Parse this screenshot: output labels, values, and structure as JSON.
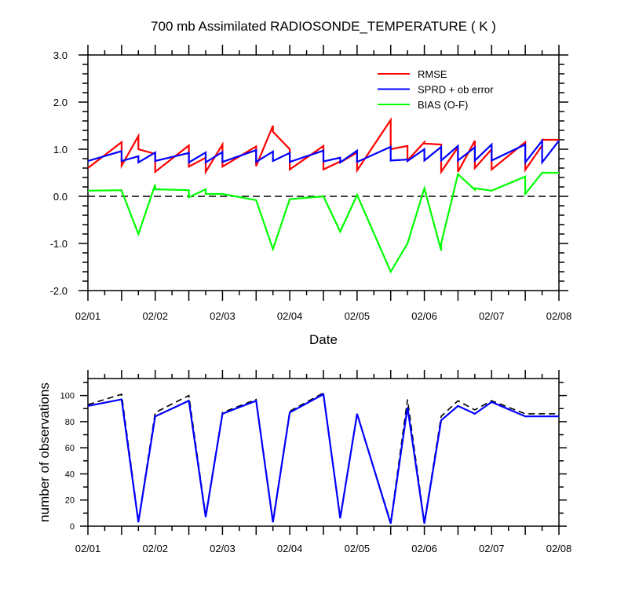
{
  "chart_data": [
    {
      "type": "line",
      "title": "700 mb Assimilated RADIOSONDE_TEMPERATURE ( K )",
      "xlabel": "Date",
      "ylabel": "",
      "x_tick_labels": [
        "02/01",
        "02/02",
        "02/03",
        "02/04",
        "02/05",
        "02/06",
        "02/07",
        "02/08"
      ],
      "y_tick_labels": [
        "3.0",
        "2.0",
        "1.0",
        "0.0",
        "-1.0",
        "-2.0"
      ],
      "xlim": [
        0,
        7
      ],
      "ylim": [
        -2,
        3
      ],
      "zero_line": {
        "y": 0,
        "style": "dashed",
        "color": "#000000"
      },
      "legend_position": "top-right",
      "series": [
        {
          "name": "RMSE",
          "color": "#ff0000",
          "x": [
            0,
            0.5,
            0.5,
            0.75,
            0.75,
            1,
            1,
            1.5,
            1.5,
            1.75,
            1.75,
            2,
            2,
            2.5,
            2.5,
            2.75,
            2.75,
            3,
            3,
            3.5,
            3.5,
            3.75,
            3.75,
            4,
            4,
            4.5,
            4.5,
            4.75,
            4.75,
            5,
            5,
            5.25,
            5.25,
            5.5,
            5.5,
            5.75,
            5.75,
            6,
            6,
            6.5,
            6.5,
            6.75,
            6.75,
            7
          ],
          "y": [
            0.6,
            1.15,
            0.65,
            1.28,
            1.0,
            0.9,
            0.52,
            1.08,
            0.63,
            0.82,
            0.52,
            1.1,
            0.63,
            1.06,
            0.64,
            1.5,
            1.37,
            1.0,
            0.57,
            1.07,
            0.57,
            0.74,
            0.72,
            0.93,
            0.55,
            1.62,
            1.0,
            1.07,
            0.76,
            1.15,
            1.12,
            1.1,
            0.52,
            1.04,
            0.52,
            1.18,
            0.6,
            1.0,
            0.57,
            1.15,
            0.56,
            1.08,
            1.2,
            1.2
          ]
        },
        {
          "name": "SPRD + ob error",
          "color": "#0000ff",
          "x": [
            0,
            0.5,
            0.5,
            0.75,
            0.75,
            1,
            1,
            1.5,
            1.5,
            1.75,
            1.75,
            2,
            2,
            2.5,
            2.5,
            2.75,
            2.75,
            3,
            3,
            3.5,
            3.5,
            3.75,
            3.75,
            4,
            4,
            4.5,
            4.5,
            4.75,
            4.75,
            5,
            5,
            5.25,
            5.25,
            5.5,
            5.5,
            5.75,
            5.75,
            6,
            6,
            6.5,
            6.5,
            6.75,
            6.75,
            7
          ],
          "y": [
            0.75,
            0.96,
            0.75,
            0.85,
            0.72,
            0.93,
            0.75,
            0.92,
            0.72,
            0.93,
            0.72,
            0.94,
            0.73,
            0.98,
            0.73,
            0.95,
            0.75,
            0.92,
            0.73,
            0.97,
            0.74,
            0.82,
            0.72,
            0.97,
            0.73,
            1.05,
            0.76,
            0.78,
            0.75,
            1.0,
            0.76,
            1.05,
            0.76,
            1.07,
            0.76,
            1.04,
            0.76,
            1.1,
            0.76,
            1.1,
            0.72,
            1.18,
            0.72,
            1.18
          ]
        },
        {
          "name": "BIAS (O-F)",
          "color": "#00ff00",
          "x": [
            0,
            0.5,
            0.5,
            0.75,
            1,
            1,
            1.5,
            1.5,
            1.75,
            1.75,
            2,
            2.5,
            2.75,
            3,
            3.5,
            3.75,
            4,
            4.5,
            4.75,
            5,
            5.25,
            5.25,
            5.5,
            5.75,
            5.75,
            6,
            6.5,
            6.5,
            6.75,
            6.75,
            7,
            7
          ],
          "y": [
            0.12,
            0.13,
            0.12,
            -0.8,
            0.25,
            0.15,
            0.13,
            -0.02,
            0.15,
            0.05,
            0.05,
            -0.08,
            -1.12,
            -0.06,
            0.0,
            -0.75,
            0.03,
            -1.6,
            -1.0,
            0.17,
            -1.15,
            -1.0,
            0.47,
            0.14,
            0.17,
            0.12,
            0.42,
            0.05,
            0.5,
            0.5,
            0.5,
            0.5
          ]
        }
      ]
    },
    {
      "type": "line",
      "title": "",
      "xlabel": "",
      "ylabel": "number of observations",
      "x_tick_labels": [
        "02/01",
        "02/02",
        "02/03",
        "02/04",
        "02/05",
        "02/06",
        "02/07",
        "02/08"
      ],
      "y_tick_labels": [
        "0",
        "20",
        "40",
        "60",
        "80",
        "100"
      ],
      "xlim": [
        0,
        7
      ],
      "ylim": [
        0,
        113
      ],
      "series": [
        {
          "name": "",
          "color": "#000000",
          "style": "dashed",
          "x": [
            0,
            0.5,
            0.75,
            1,
            1.5,
            1.75,
            2,
            2.5,
            2.75,
            3,
            3.5,
            3.75,
            4,
            4.5,
            4.75,
            5,
            5.25,
            5.5,
            5.75,
            6,
            6.5,
            7
          ],
          "y": [
            93,
            101,
            4,
            87,
            100,
            8,
            87,
            97,
            4,
            88,
            102,
            7,
            86,
            3,
            97,
            3,
            84,
            96,
            89,
            96,
            86,
            86
          ]
        },
        {
          "name": "",
          "color": "#0000ff",
          "style": "solid",
          "x": [
            0,
            0.5,
            0.75,
            1,
            1.5,
            1.75,
            2,
            2.5,
            2.75,
            3,
            3.5,
            3.75,
            4,
            4.5,
            4.75,
            5,
            5.25,
            5.5,
            5.75,
            6,
            6.5,
            7
          ],
          "y": [
            92,
            97,
            3,
            84,
            96,
            7,
            86,
            96,
            3,
            87,
            101,
            6,
            86,
            2,
            91,
            2,
            81,
            92,
            86,
            95,
            84,
            84
          ]
        }
      ]
    }
  ]
}
